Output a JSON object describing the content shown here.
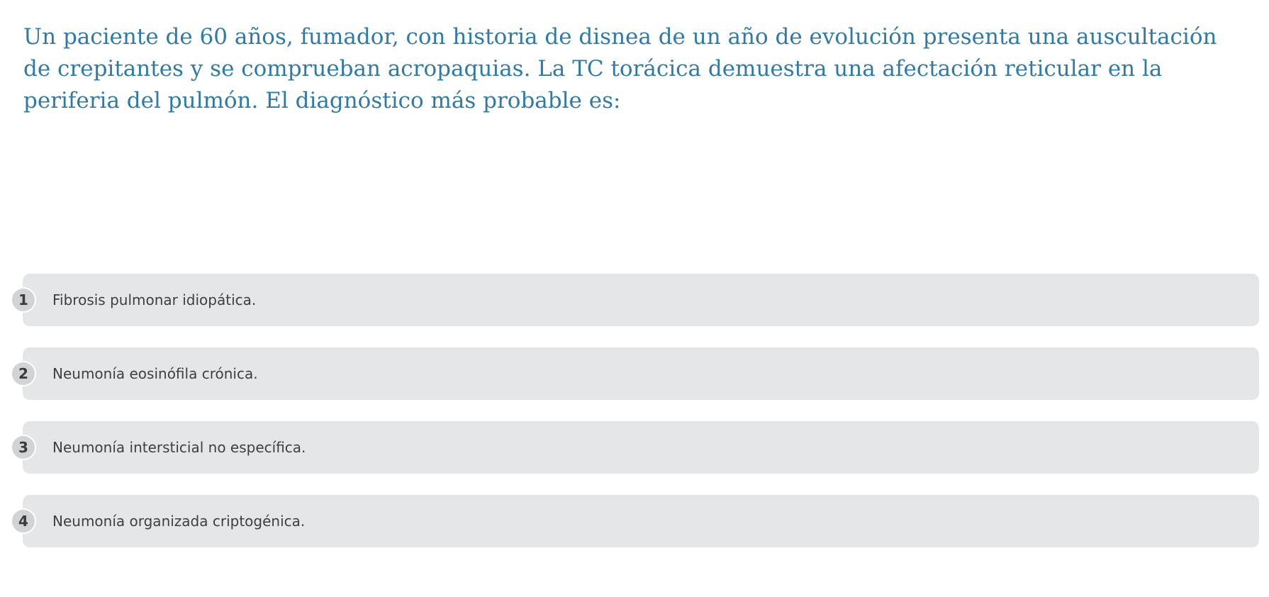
{
  "question": {
    "text": "Un paciente de 60 años, fumador, con historia de disnea de un año de evolución presenta una auscultación de crepitantes y se comprueban acropaquias. La TC torácica demuestra una afectación reticular en la periferia del pulmón. El diagnóstico más probable es:"
  },
  "options": [
    {
      "number": "1",
      "label": "Fibrosis pulmonar idiopática."
    },
    {
      "number": "2",
      "label": "Neumonía eosinófila crónica."
    },
    {
      "number": "3",
      "label": "Neumonía intersticial no específica."
    },
    {
      "number": "4",
      "label": "Neumonía organizada criptogénica."
    }
  ],
  "colors": {
    "question_text": "#2f7aa7",
    "option_background": "#e5e6e8",
    "number_badge": "#d2d3d6"
  }
}
